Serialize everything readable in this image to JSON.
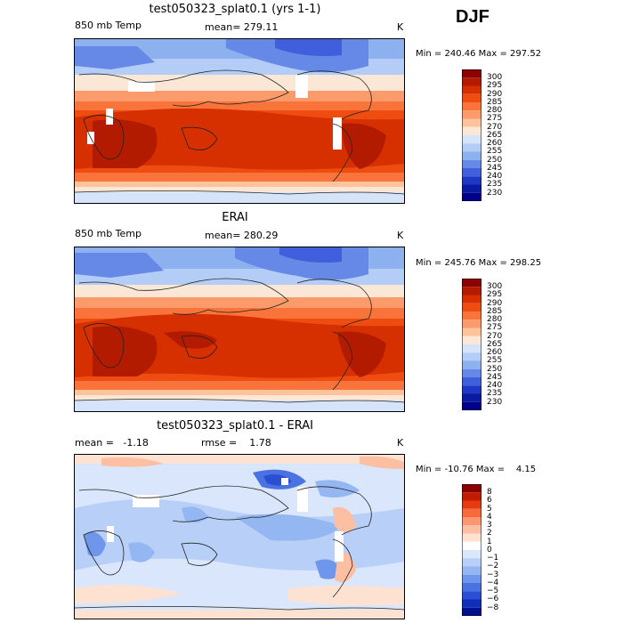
{
  "season": "DJF",
  "units_label": "K",
  "panels": [
    {
      "title": "test050323_splat0.1 (yrs 1-1)",
      "left_label": "850 mb Temp",
      "center_label": "mean= 279.11",
      "right_label": "K",
      "minmax": "Min = 240.46 Max = 297.52",
      "colorbar_labels": [
        "300",
        "295",
        "290",
        "285",
        "280",
        "275",
        "270",
        "265",
        "260",
        "255",
        "250",
        "245",
        "240",
        "235",
        "230"
      ]
    },
    {
      "title": "ERAI",
      "left_label": "850 mb Temp",
      "center_label": "mean= 280.29",
      "right_label": "K",
      "minmax": "Min = 245.76 Max = 298.25",
      "colorbar_labels": [
        "300",
        "295",
        "290",
        "285",
        "280",
        "275",
        "270",
        "265",
        "260",
        "255",
        "250",
        "245",
        "240",
        "235",
        "230"
      ]
    },
    {
      "title": "test050323_splat0.1 - ERAI",
      "left_label": "mean =   -1.18",
      "center_label": "rmse =    1.78",
      "right_label": "K",
      "minmax": "Min = -10.76 Max =    4.15",
      "colorbar_labels": [
        "8",
        "6",
        "5",
        "4",
        "3",
        "2",
        "1",
        "0",
        "−1",
        "−2",
        "−3",
        "−4",
        "−5",
        "−6",
        "−8"
      ]
    }
  ],
  "colors": {
    "abs_scale": [
      "#8b0000",
      "#b31b00",
      "#d73000",
      "#ee4c11",
      "#f8743b",
      "#fb9a6a",
      "#fcc39d",
      "#fbe7d6",
      "#d6e4fa",
      "#b3cdf6",
      "#8db0ef",
      "#6688e6",
      "#3f5fdc",
      "#1f37c5",
      "#0a1ba0",
      "#00008b"
    ],
    "diff_scale": [
      "#8b0000",
      "#c11b00",
      "#e53b10",
      "#f76a3c",
      "#fb9672",
      "#fcbfa2",
      "#fde2d2",
      "#ffffff",
      "#d9e6fb",
      "#b8d0f7",
      "#94b6f1",
      "#6e96ea",
      "#4a72e0",
      "#2a4fd2",
      "#0f2fb8",
      "#00108f"
    ]
  }
}
